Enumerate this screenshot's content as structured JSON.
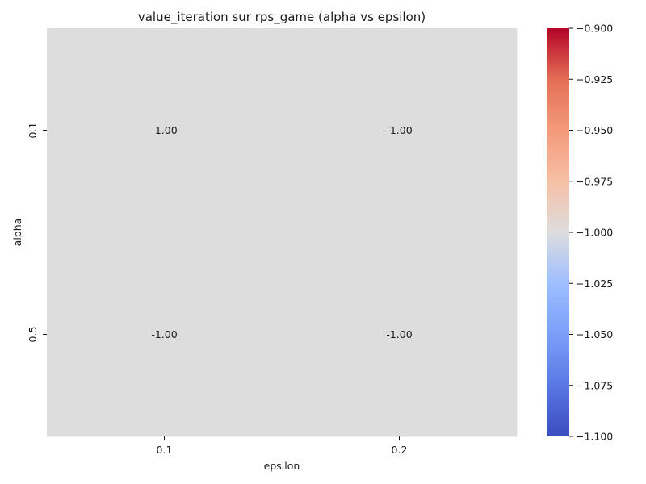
{
  "chart_data": {
    "type": "heatmap",
    "title": "value_iteration sur rps_game (alpha vs epsilon)",
    "xlabel": "epsilon",
    "ylabel": "alpha",
    "x_categories": [
      "0.1",
      "0.2"
    ],
    "y_categories": [
      "0.1",
      "0.5"
    ],
    "values": [
      [
        -1.0,
        -1.0
      ],
      [
        -1.0,
        -1.0
      ]
    ],
    "cell_labels": [
      [
        "-1.00",
        "-1.00"
      ],
      [
        "-1.00",
        "-1.00"
      ]
    ],
    "colormap": "coolwarm",
    "cell_color": "#dddddd",
    "colorbar": {
      "min": -1.1,
      "max": -0.9,
      "low_color": "#3b4cc0",
      "mid_color": "#dddddd",
      "high_color": "#b40426",
      "ticks": [
        "−1.100",
        "−1.075",
        "−1.050",
        "−1.025",
        "−1.000",
        "−0.975",
        "−0.950",
        "−0.925",
        "−0.900"
      ],
      "tick_values": [
        -1.1,
        -1.075,
        -1.05,
        -1.025,
        -1.0,
        -0.975,
        -0.95,
        -0.925,
        -0.9
      ]
    },
    "grid": false,
    "legend": "colorbar-right"
  }
}
